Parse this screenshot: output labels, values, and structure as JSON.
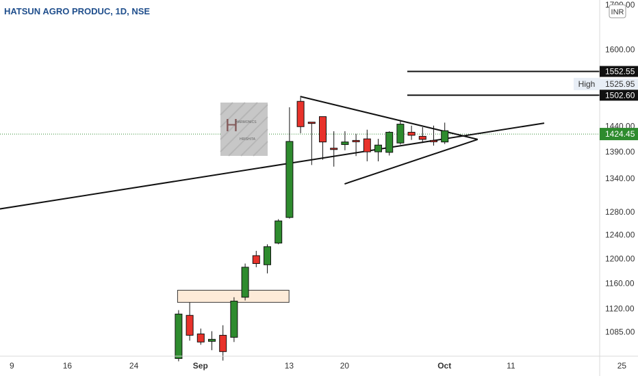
{
  "header": {
    "symbol_title": "HATSUN AGRO PRODUC, 1D, NSE",
    "currency_badge": "INR"
  },
  "watermark": {
    "logo_text": "HARMONICS HRISHITA"
  },
  "price_axis": {
    "top_partial_label": "1700.00"
  },
  "chart_data": {
    "type": "candlestick",
    "title": "HATSUN AGRO PRODUC, 1D, NSE",
    "xlabel": "",
    "ylabel": "",
    "ylim": [
      1040,
      1708
    ],
    "price_scale": "log",
    "y_ticks": [
      "1600.00",
      "1440.00",
      "1390.00",
      "1340.00",
      "1280.00",
      "1240.00",
      "1200.00",
      "1160.00",
      "1120.00",
      "1085.00"
    ],
    "x_ticks": [
      "9",
      "16",
      "24",
      "Sep",
      "13",
      "20",
      "Oct",
      "11",
      "25"
    ],
    "x_tick_dates": [
      "2021-08-09",
      "2021-08-16",
      "2021-08-24",
      "2021-09-01",
      "2021-09-13",
      "2021-09-20",
      "2021-10-01",
      "2021-10-11",
      "2021-10-25"
    ],
    "bullish_color": "#2e8b2e",
    "bearish_color": "#e8322b",
    "candles": [
      {
        "date": "2021-08-30",
        "open": 1046,
        "high": 1118,
        "low": 1042,
        "close": 1112
      },
      {
        "date": "2021-08-31",
        "open": 1110,
        "high": 1130,
        "low": 1072,
        "close": 1080
      },
      {
        "date": "2021-09-01",
        "open": 1082,
        "high": 1090,
        "low": 1066,
        "close": 1070
      },
      {
        "date": "2021-09-02",
        "open": 1071,
        "high": 1086,
        "low": 1058,
        "close": 1074
      },
      {
        "date": "2021-09-03",
        "open": 1080,
        "high": 1095,
        "low": 1043,
        "close": 1056
      },
      {
        "date": "2021-09-06",
        "open": 1077,
        "high": 1138,
        "low": 1070,
        "close": 1132
      },
      {
        "date": "2021-09-07",
        "open": 1138,
        "high": 1192,
        "low": 1133,
        "close": 1186
      },
      {
        "date": "2021-09-08",
        "open": 1205,
        "high": 1213,
        "low": 1186,
        "close": 1192
      },
      {
        "date": "2021-09-09",
        "open": 1190,
        "high": 1224,
        "low": 1176,
        "close": 1220
      },
      {
        "date": "2021-09-10",
        "open": 1226,
        "high": 1267,
        "low": 1224,
        "close": 1264
      },
      {
        "date": "2021-09-13",
        "open": 1270,
        "high": 1478,
        "low": 1268,
        "close": 1410
      },
      {
        "date": "2021-09-14",
        "open": 1490,
        "high": 1498,
        "low": 1426,
        "close": 1439
      },
      {
        "date": "2021-09-15",
        "open": 1448,
        "high": 1448,
        "low": 1365,
        "close": 1446
      },
      {
        "date": "2021-09-16",
        "open": 1459,
        "high": 1459,
        "low": 1375,
        "close": 1409
      },
      {
        "date": "2021-09-17",
        "open": 1397,
        "high": 1430,
        "low": 1362,
        "close": 1395
      },
      {
        "date": "2021-09-20",
        "open": 1404,
        "high": 1430,
        "low": 1393,
        "close": 1409
      },
      {
        "date": "2021-09-21",
        "open": 1412,
        "high": 1425,
        "low": 1382,
        "close": 1411
      },
      {
        "date": "2021-09-22",
        "open": 1415,
        "high": 1433,
        "low": 1372,
        "close": 1390
      },
      {
        "date": "2021-09-23",
        "open": 1390,
        "high": 1415,
        "low": 1372,
        "close": 1403
      },
      {
        "date": "2021-09-24",
        "open": 1389,
        "high": 1430,
        "low": 1383,
        "close": 1428
      },
      {
        "date": "2021-09-27",
        "open": 1407,
        "high": 1452,
        "low": 1404,
        "close": 1444
      },
      {
        "date": "2021-09-28",
        "open": 1428,
        "high": 1441,
        "low": 1413,
        "close": 1422
      },
      {
        "date": "2021-09-29",
        "open": 1420,
        "high": 1438,
        "low": 1407,
        "close": 1414
      },
      {
        "date": "2021-09-30",
        "open": 1412,
        "high": 1441,
        "low": 1402,
        "close": 1410
      },
      {
        "date": "2021-10-01",
        "open": 1409,
        "high": 1447,
        "low": 1405,
        "close": 1431
      }
    ],
    "horizontal_levels": [
      {
        "price": 1552.55,
        "label": "1552.55"
      },
      {
        "price": 1502.6,
        "label": "1502.60"
      }
    ],
    "reference_levels": [
      {
        "name": "High",
        "price": 1525.95,
        "label": "1525.95"
      }
    ],
    "last_price": {
      "price": 1424.45,
      "label": "1424.45",
      "color": "#2e8b2e"
    },
    "trendlines": [
      {
        "from": {
          "date": "2021-08-01",
          "price": 1273
        },
        "to": {
          "date": "2021-10-14",
          "price": 1446
        }
      },
      {
        "from": {
          "date": "2021-09-14",
          "price": 1500
        },
        "to": {
          "date": "2021-10-06",
          "price": 1414
        }
      },
      {
        "from": {
          "date": "2021-09-20",
          "price": 1330
        },
        "to": {
          "date": "2021-10-06",
          "price": 1414
        }
      }
    ],
    "zones": [
      {
        "from_date": "2021-08-30",
        "to_date": "2021-09-10",
        "price_top": 1149,
        "price_bottom": 1130,
        "fill": "#fdebd8"
      }
    ]
  }
}
